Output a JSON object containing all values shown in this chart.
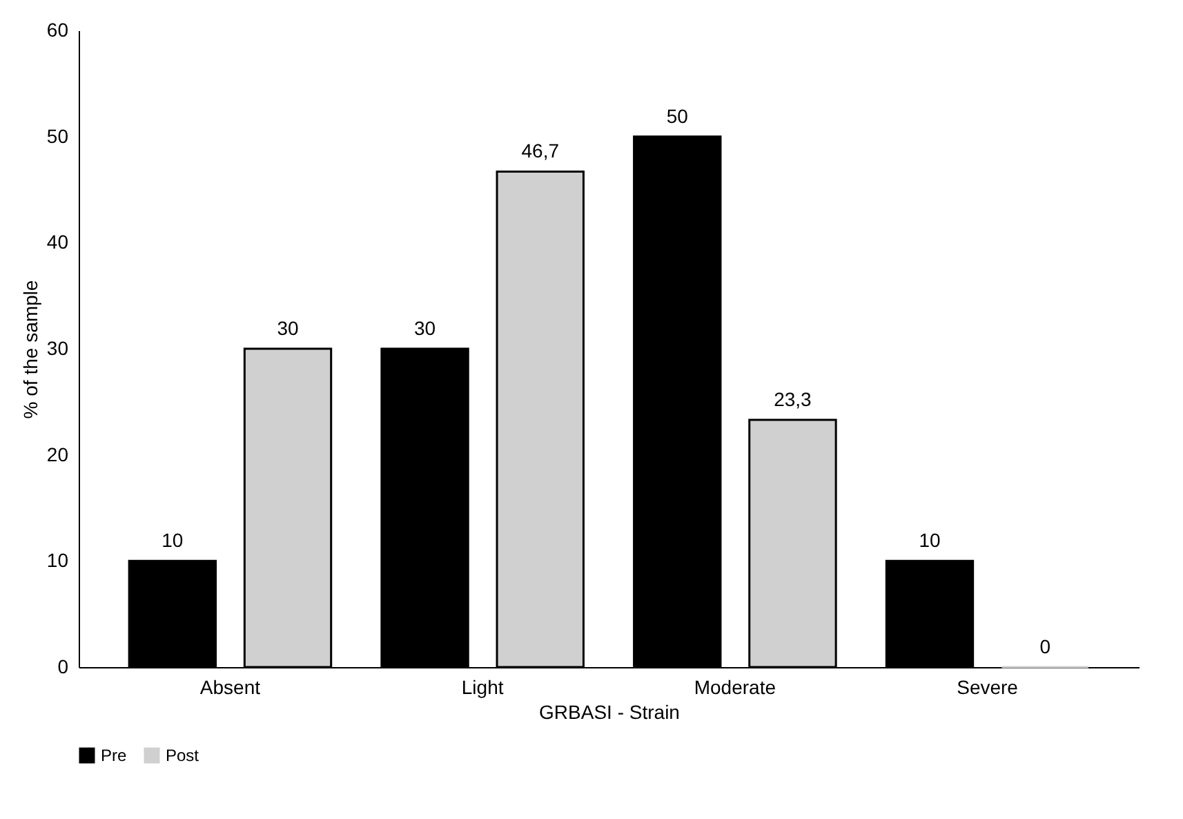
{
  "chart_data": {
    "type": "bar",
    "xlabel": "GRBASI - Strain",
    "ylabel": "% of the sample",
    "categories": [
      "Absent",
      "Light",
      "Moderate",
      "Severe"
    ],
    "series": [
      {
        "name": "Pre",
        "color": "#000000",
        "values": [
          10,
          30,
          50,
          10
        ],
        "value_labels": [
          "10",
          "30",
          "50",
          "10"
        ]
      },
      {
        "name": "Post",
        "color": "#d0d0d0",
        "values": [
          30,
          46.7,
          23.3,
          0
        ],
        "value_labels": [
          "30",
          "46,7",
          "23,3",
          "0"
        ]
      }
    ],
    "ylim": [
      0,
      60
    ],
    "yticks": [
      0,
      10,
      20,
      30,
      40,
      50,
      60
    ],
    "grid": false,
    "legend": "bottom"
  }
}
